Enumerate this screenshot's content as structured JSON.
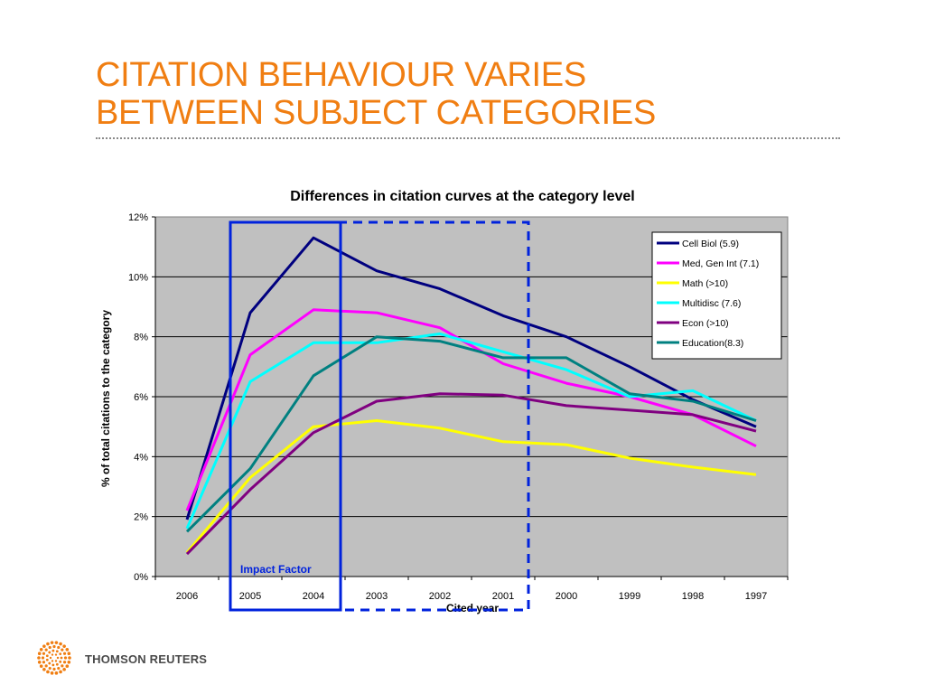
{
  "slide": {
    "title_line1": "CITATION BEHAVIOUR VARIES",
    "title_line2": "BETWEEN SUBJECT CATEGORIES",
    "brand": "THOMSON REUTERS"
  },
  "colors": {
    "title": "#F07E12",
    "plot_bg": "#C0C0C0",
    "highlight_box": "#0022DD"
  },
  "annotations": {
    "impact_factor_label": "Impact Factor"
  },
  "chart_data": {
    "type": "line",
    "title": "Differences in citation curves at the category level",
    "xlabel": "Cited year",
    "ylabel": "% of total citations to the category",
    "categories": [
      "2006",
      "2005",
      "2004",
      "2003",
      "2002",
      "2001",
      "2000",
      "1999",
      "1998",
      "1997"
    ],
    "ylim": [
      0,
      12
    ],
    "yticks": [
      "0%",
      "2%",
      "4%",
      "6%",
      "8%",
      "10%",
      "12%"
    ],
    "grid": true,
    "legend_position": "top-right",
    "series": [
      {
        "name": "Cell Biol (5.9)",
        "color": "#00007F",
        "values": [
          1.9,
          8.8,
          11.3,
          10.2,
          9.6,
          8.7,
          8.0,
          7.0,
          5.9,
          5.0
        ]
      },
      {
        "name": "Med, Gen Int (7.1)",
        "color": "#FF00FF",
        "values": [
          2.2,
          7.4,
          8.9,
          8.8,
          8.3,
          7.1,
          6.45,
          6.0,
          5.4,
          4.35
        ]
      },
      {
        "name": "Math (>10)",
        "color": "#FFFF00",
        "values": [
          0.8,
          3.3,
          5.0,
          5.2,
          4.95,
          4.5,
          4.4,
          3.95,
          3.65,
          3.4
        ]
      },
      {
        "name": "Multidisc (7.6)",
        "color": "#00FFFF",
        "values": [
          1.6,
          6.5,
          7.8,
          7.8,
          8.1,
          7.5,
          6.9,
          6.0,
          6.2,
          5.2
        ]
      },
      {
        "name": "Econ (>10)",
        "color": "#800080",
        "values": [
          0.75,
          2.9,
          4.8,
          5.85,
          6.1,
          6.05,
          5.7,
          5.55,
          5.4,
          4.85
        ]
      },
      {
        "name": "Education(8.3)",
        "color": "#008080",
        "values": [
          1.5,
          3.6,
          6.7,
          8.0,
          7.85,
          7.3,
          7.3,
          6.1,
          5.85,
          5.2
        ]
      }
    ]
  }
}
